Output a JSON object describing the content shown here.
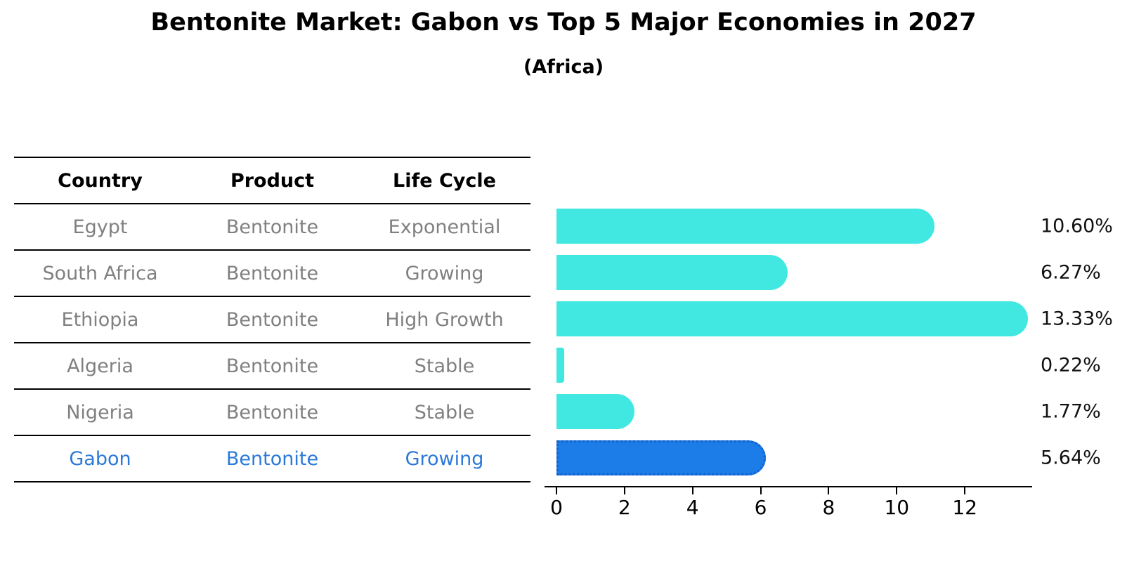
{
  "title": {
    "text": "Bentonite Market: Gabon vs Top 5 Major Economies in 2027",
    "subtitle": "(Africa)"
  },
  "table": {
    "headers": [
      "Country",
      "Product",
      "Life Cycle"
    ],
    "rows": [
      {
        "country": "Egypt",
        "product": "Bentonite",
        "life_cycle": "Exponential",
        "highlight": false
      },
      {
        "country": "South Africa",
        "product": "Bentonite",
        "life_cycle": "Growing",
        "highlight": false
      },
      {
        "country": "Ethiopia",
        "product": "Bentonite",
        "life_cycle": "High Growth",
        "highlight": false
      },
      {
        "country": "Algeria",
        "product": "Bentonite",
        "life_cycle": "Stable",
        "highlight": false
      },
      {
        "country": "Nigeria",
        "product": "Bentonite",
        "life_cycle": "Stable",
        "highlight": false
      },
      {
        "country": "Gabon",
        "product": "Bentonite",
        "life_cycle": "Growing",
        "highlight": true
      }
    ]
  },
  "chart_data": {
    "type": "bar",
    "orientation": "horizontal",
    "title": "Bentonite Market: Gabon vs Top 5 Major Economies in 2027",
    "subtitle": "(Africa)",
    "categories": [
      "Egypt",
      "South Africa",
      "Ethiopia",
      "Algeria",
      "Nigeria",
      "Gabon"
    ],
    "values": [
      10.6,
      6.27,
      13.33,
      0.22,
      1.77,
      5.64
    ],
    "value_labels": [
      "10.60%",
      "6.27%",
      "13.33%",
      "0.22%",
      "1.77%",
      "5.64%"
    ],
    "xlabel": "",
    "ylabel": "",
    "xlim": [
      0,
      14
    ],
    "xticks": [
      0,
      2,
      4,
      6,
      8,
      10,
      12
    ],
    "grid": false,
    "legend": false,
    "bar_color": "#40E8E1",
    "highlight": {
      "category": "Gabon",
      "index": 5,
      "color": "#1C7CE8",
      "border_color": "#1461C9",
      "text_color": "#2B79D8"
    },
    "table_text_color": "#808080",
    "axis_color": "#000000"
  }
}
